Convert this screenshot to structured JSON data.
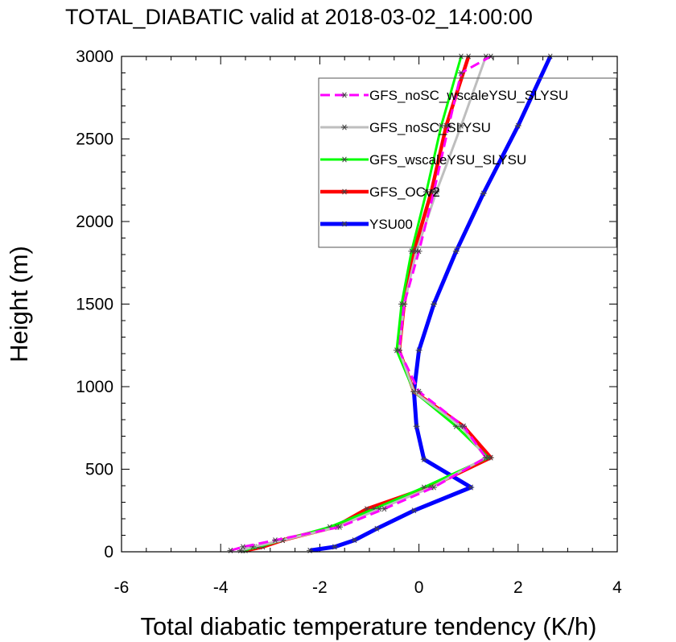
{
  "chart_data": {
    "type": "line",
    "title": "TOTAL_DIABATIC valid at 2018-03-02_14:00:00",
    "xlabel": "Total diabatic temperature tendency (K/h)",
    "ylabel": "Height (m)",
    "xlim": [
      -6,
      4
    ],
    "ylim": [
      0,
      3000
    ],
    "xticks": [
      -6,
      -4,
      -2,
      0,
      2,
      4
    ],
    "yticks": [
      0,
      500,
      1000,
      1500,
      2000,
      2500,
      3000
    ],
    "xtick_labels": [
      "-6",
      "-4",
      "-2",
      "0",
      "2",
      "4"
    ],
    "ytick_labels": [
      "0",
      "500",
      "1000",
      "1500",
      "2000",
      "2500",
      "3000"
    ],
    "grid": false,
    "legend_position": "top-right",
    "series": [
      {
        "name": "GFS_noSC_wscaleYSU_SLYSU",
        "color": "#ff00ff",
        "dash": "dashed",
        "x": [
          -3.8,
          -3.55,
          -2.9,
          -1.6,
          -0.7,
          0.3,
          1.35,
          0.9,
          0.0,
          -0.4,
          -0.3,
          0.0,
          0.3,
          0.6,
          0.85,
          1.45
        ],
        "y": [
          8,
          30,
          70,
          150,
          260,
          390,
          570,
          760,
          970,
          1220,
          1500,
          1820,
          2180,
          2580,
          2900,
          3000
        ]
      },
      {
        "name": "GFS_noSC_SLYSU",
        "color": "#bebebe",
        "dash": "solid",
        "x": [
          -3.6,
          -3.35,
          -2.75,
          -1.65,
          -0.8,
          0.25,
          1.35,
          0.85,
          -0.1,
          -0.4,
          -0.3,
          -0.05,
          0.35,
          0.85,
          1.35
        ],
        "y": [
          8,
          30,
          70,
          150,
          260,
          390,
          570,
          760,
          970,
          1220,
          1500,
          1820,
          2180,
          2580,
          3000
        ]
      },
      {
        "name": "GFS_wscaleYSU_SLYSU",
        "color": "#00ff00",
        "dash": "solid",
        "x": [
          -3.55,
          -3.25,
          -2.75,
          -1.8,
          -0.9,
          0.1,
          1.4,
          0.75,
          -0.1,
          -0.45,
          -0.35,
          -0.15,
          0.15,
          0.45,
          0.85
        ],
        "y": [
          8,
          30,
          70,
          150,
          260,
          390,
          570,
          760,
          970,
          1220,
          1500,
          1820,
          2180,
          2580,
          3000
        ]
      },
      {
        "name": "GFS_OCv2",
        "color": "#ff0000",
        "dash": "solid",
        "x": [
          -3.5,
          -3.15,
          -2.75,
          -1.7,
          -1.05,
          0.2,
          1.45,
          0.9,
          -0.1,
          -0.4,
          -0.3,
          -0.1,
          0.25,
          0.55,
          1.0
        ],
        "y": [
          8,
          30,
          70,
          150,
          260,
          390,
          570,
          760,
          970,
          1220,
          1500,
          1820,
          2180,
          2580,
          3000
        ]
      },
      {
        "name": "YSU00",
        "color": "#0000ff",
        "dash": "solid",
        "x": [
          -2.2,
          -1.7,
          -1.3,
          -0.85,
          -0.1,
          1.05,
          0.1,
          -0.05,
          -0.1,
          0.0,
          0.3,
          0.75,
          1.3,
          2.0,
          2.65
        ],
        "y": [
          8,
          30,
          70,
          140,
          250,
          390,
          560,
          760,
          970,
          1220,
          1500,
          1820,
          2170,
          2580,
          3000
        ]
      }
    ]
  }
}
